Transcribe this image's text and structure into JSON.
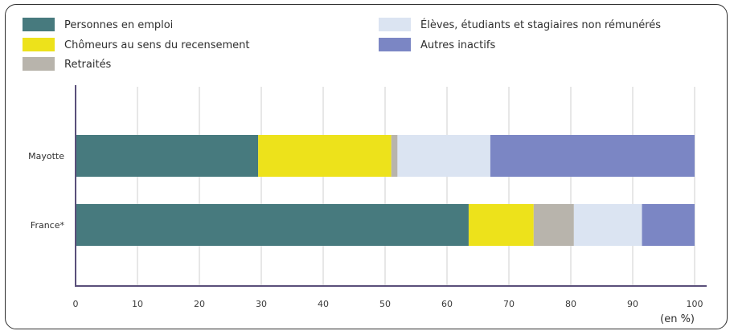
{
  "chart_data": {
    "type": "bar",
    "orientation": "horizontal",
    "stacked": true,
    "categories": [
      "Mayotte",
      "France*"
    ],
    "series": [
      {
        "name": "Personnes en emploi",
        "color": "#477a7e",
        "values": [
          29.5,
          63.5
        ]
      },
      {
        "name": "Chômeurs au sens du recensement",
        "color": "#ede21b",
        "values": [
          21.5,
          10.5
        ]
      },
      {
        "name": "Retraités",
        "color": "#b8b4ac",
        "values": [
          1.0,
          6.5
        ]
      },
      {
        "name": "Élèves, étudiants et stagiaires non rémunérés",
        "color": "#dbe4f2",
        "values": [
          15.0,
          11.0
        ]
      },
      {
        "name": "Autres inactifs",
        "color": "#7b86c4",
        "values": [
          33.0,
          8.5
        ]
      }
    ],
    "xlim": [
      0,
      100
    ],
    "xticks": [
      "0",
      "10",
      "20",
      "30",
      "40",
      "50",
      "60",
      "70",
      "80",
      "90",
      "100"
    ],
    "unit_label": "(en %)",
    "grid": true,
    "legend_position": "top"
  }
}
